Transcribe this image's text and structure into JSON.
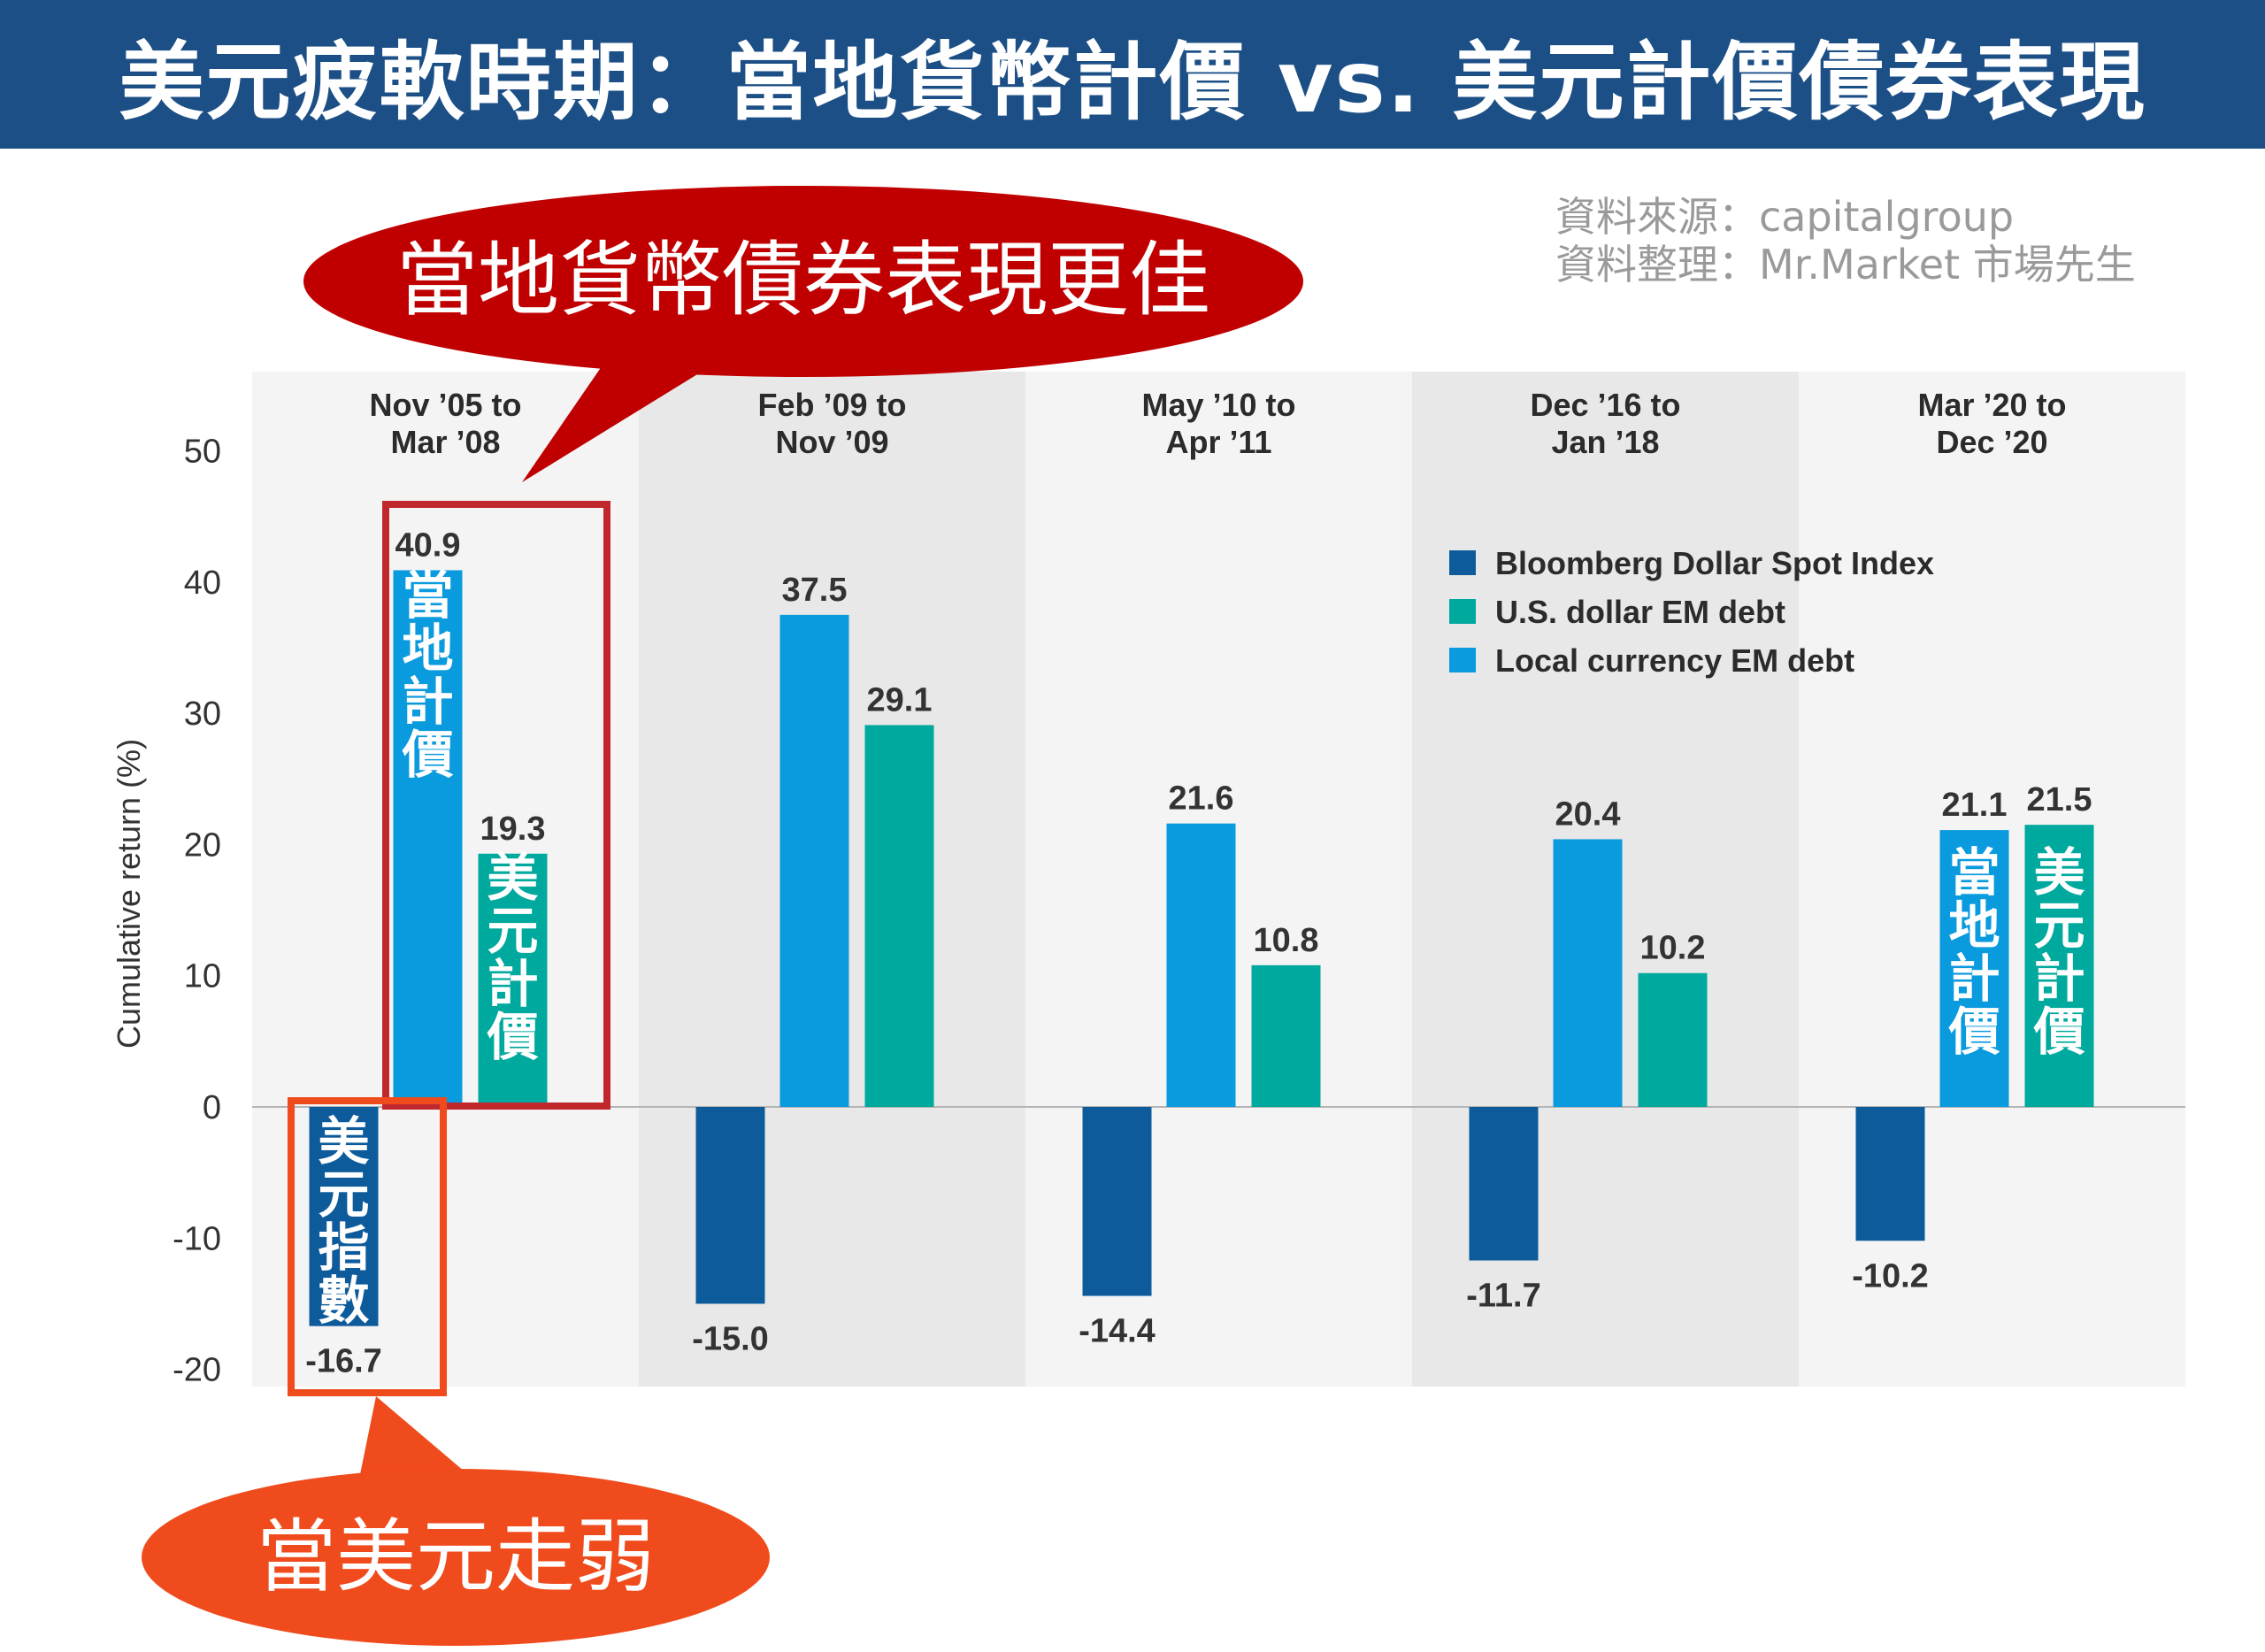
{
  "banner": {
    "title": "美元疲軟時期：當地貨幣計價 vs. 美元計價債券表現"
  },
  "source": {
    "line1": "資料來源：capitalgroup",
    "line2": "資料整理：Mr.Market 市場先生"
  },
  "callouts": {
    "top": "當地貨幣債券表現更佳",
    "bottom": "當美元走弱"
  },
  "bar_tags": {
    "local_1": "當地計價",
    "usd_1": "美元計價",
    "index_1": "美元指數",
    "local_5": "當地計價",
    "usd_5": "美元計價"
  },
  "colors": {
    "banner": "#1c4f86",
    "dollar_index": "#0d5b9a",
    "usd_em_debt": "#00a99d",
    "local_em_debt": "#0a9ade",
    "top_callout": "#c00000",
    "bottom_callout": "#f04b1c",
    "highlight_red": "#c0282d",
    "highlight_orange": "#f04b1c"
  },
  "chart_data": {
    "type": "bar",
    "ylabel": "Cumulative return (%)",
    "ylim": [
      -20,
      50
    ],
    "yticks": [
      50,
      40,
      30,
      20,
      10,
      0,
      -10,
      -20
    ],
    "categories": [
      [
        "Nov ’05 to",
        "Mar ’08"
      ],
      [
        "Feb ’09 to",
        "Nov ’09"
      ],
      [
        "May ’10 to",
        "Apr ’11"
      ],
      [
        "Dec ’16 to",
        "Jan ’18"
      ],
      [
        "Mar ’20 to",
        "Dec ’20"
      ]
    ],
    "series": [
      {
        "name": "Bloomberg Dollar Spot Index",
        "color": "#0d5b9a",
        "values": [
          -16.7,
          -15.0,
          -14.4,
          -11.7,
          -10.2
        ]
      },
      {
        "name": "Local currency EM debt",
        "color": "#0a9ade",
        "values": [
          40.9,
          37.5,
          21.6,
          20.4,
          21.1
        ]
      },
      {
        "name": "U.S. dollar EM debt",
        "color": "#00a99d",
        "values": [
          19.3,
          29.1,
          10.8,
          10.2,
          21.5
        ]
      }
    ],
    "value_labels": [
      [
        "-16.7",
        "40.9",
        "19.3"
      ],
      [
        "-15.0",
        "37.5",
        "29.1"
      ],
      [
        "-14.4",
        "21.6",
        "10.8"
      ],
      [
        "-11.7",
        "20.4",
        "10.2"
      ],
      [
        "-10.2",
        "21.1",
        "21.5"
      ]
    ],
    "legend": {
      "position": "top-right",
      "items": [
        {
          "label": "Bloomberg Dollar Spot Index",
          "color": "#0d5b9a"
        },
        {
          "label": "U.S. dollar EM debt",
          "color": "#00a99d"
        },
        {
          "label": "Local currency EM debt",
          "color": "#0a9ade"
        }
      ]
    },
    "grid": false
  }
}
